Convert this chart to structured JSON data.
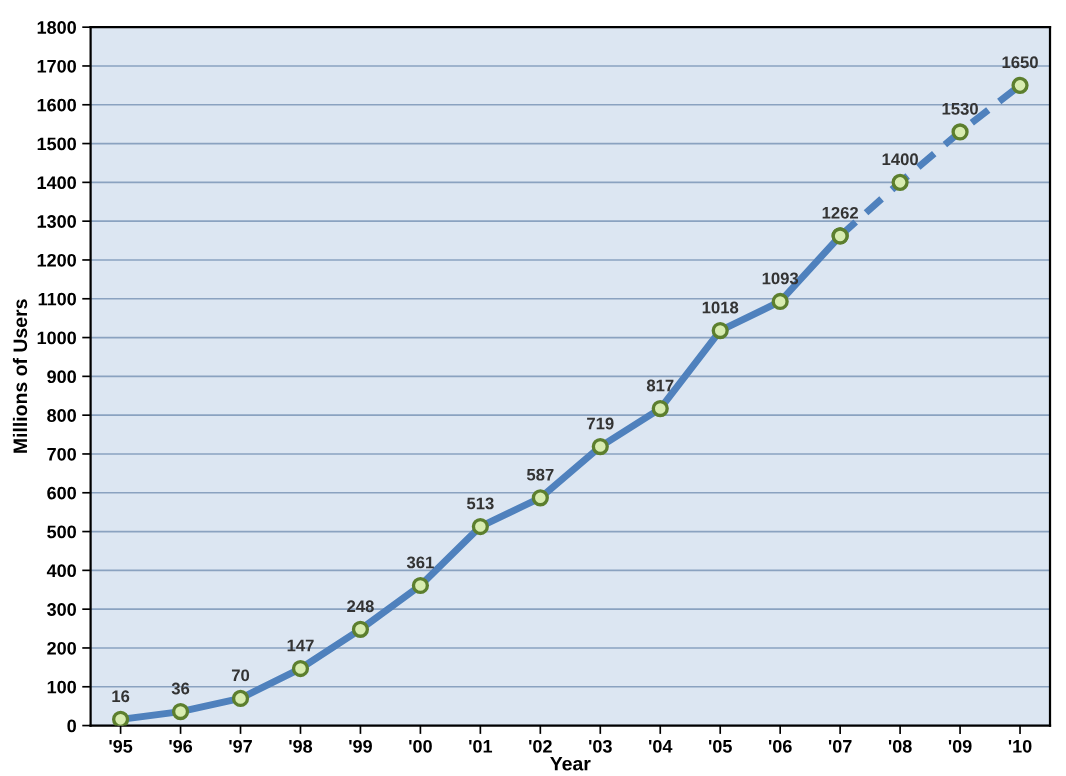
{
  "chart_data": {
    "type": "line",
    "xlabel": "Year",
    "ylabel": "Millions of Users",
    "categories": [
      "'95",
      "'96",
      "'97",
      "'98",
      "'99",
      "'00",
      "'01",
      "'02",
      "'03",
      "'04",
      "'05",
      "'06",
      "'07",
      "'08",
      "'09",
      "'10"
    ],
    "series": [
      {
        "color": "#4f81bd",
        "line_style": "solid",
        "values": [
          16,
          36,
          70,
          147,
          248,
          361,
          513,
          587,
          719,
          817,
          1018,
          1093,
          1262,
          null,
          null,
          null
        ],
        "value_labels": [
          "16",
          "36",
          "70",
          "147",
          "248",
          "361",
          "513",
          "587",
          "719",
          "817",
          "1018",
          "1093",
          "1262",
          null,
          null,
          null
        ]
      },
      {
        "color": "#4f81bd",
        "line_style": "dashed",
        "values": [
          null,
          null,
          null,
          null,
          null,
          null,
          null,
          null,
          null,
          null,
          null,
          null,
          1262,
          1400,
          1530,
          1650
        ],
        "value_labels": [
          null,
          null,
          null,
          null,
          null,
          null,
          null,
          null,
          null,
          null,
          null,
          null,
          null,
          "1400",
          "1530",
          "1650"
        ]
      }
    ],
    "ylim": [
      0,
      1800
    ],
    "yticks": [
      0,
      100,
      200,
      300,
      400,
      500,
      600,
      700,
      800,
      900,
      1000,
      1100,
      1200,
      1300,
      1400,
      1500,
      1600,
      1700,
      1800
    ],
    "grid": "y",
    "marker": "circle",
    "legend": false
  }
}
